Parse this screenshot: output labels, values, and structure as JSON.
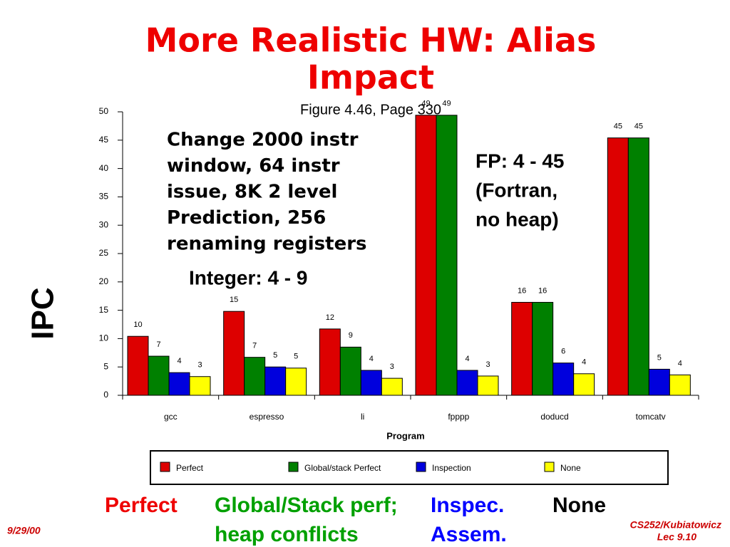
{
  "slide": {
    "title_lines": [
      "More Realistic HW: Alias",
      "Impact"
    ],
    "setup_lines": [
      "Change  2000 instr",
      "window, 64 instr",
      "issue, 8K 2 level",
      "Prediction, 256",
      "renaming registers"
    ],
    "integer_note": "Integer: 4 - 9",
    "fp_lines": [
      "FP: 4 - 45",
      "(Fortran,",
      "no heap)"
    ],
    "bottom_labels": [
      {
        "lines": [
          "Perfect"
        ],
        "color": "#ee0000"
      },
      {
        "lines": [
          "Global/Stack perf;",
          "heap conflicts"
        ],
        "color": "#00a000"
      },
      {
        "lines": [
          "Inspec.",
          "Assem."
        ],
        "color": "#0000ff"
      },
      {
        "lines": [
          "None"
        ],
        "color": "#000000"
      }
    ],
    "date": "9/29/00",
    "footer_lines": [
      "CS252/Kubiatowicz",
      "Lec 9.10"
    ]
  },
  "chart_data": {
    "type": "bar",
    "subtitle": "Figure 4.46, Page 330",
    "y_label": "IPC",
    "x_label": "Program",
    "categories": [
      "gcc",
      "espresso",
      "li",
      "fpppp",
      "doducd",
      "tomcatv"
    ],
    "series": [
      {
        "name": "Perfect",
        "color": "#dd0000",
        "values": [
          10.4,
          14.8,
          11.7,
          49.4,
          16.4,
          45.4
        ],
        "value_labels": [
          "10",
          "15",
          "12",
          "49",
          "16",
          "45"
        ]
      },
      {
        "name": "Global/stack Perfect",
        "color": "#008000",
        "values": [
          6.9,
          6.7,
          8.5,
          49.4,
          16.4,
          45.4
        ],
        "value_labels": [
          "7",
          "7",
          "9",
          "49",
          "16",
          "45"
        ]
      },
      {
        "name": "Inspection",
        "color": "#0000dd",
        "values": [
          4.0,
          5.0,
          4.4,
          4.4,
          5.7,
          4.6
        ],
        "value_labels": [
          "4",
          "5",
          "4",
          "4",
          "6",
          "5"
        ]
      },
      {
        "name": "None",
        "color": "#ffff00",
        "values": [
          3.3,
          4.8,
          3.0,
          3.4,
          3.8,
          3.6
        ],
        "value_labels": [
          "3",
          "5",
          "3",
          "3",
          "4",
          "4"
        ]
      }
    ],
    "ylim": [
      0,
      50
    ],
    "yticks": [
      0,
      5,
      10,
      15,
      20,
      25,
      30,
      35,
      40,
      45,
      50
    ],
    "grid": false,
    "legend": "bottom"
  }
}
